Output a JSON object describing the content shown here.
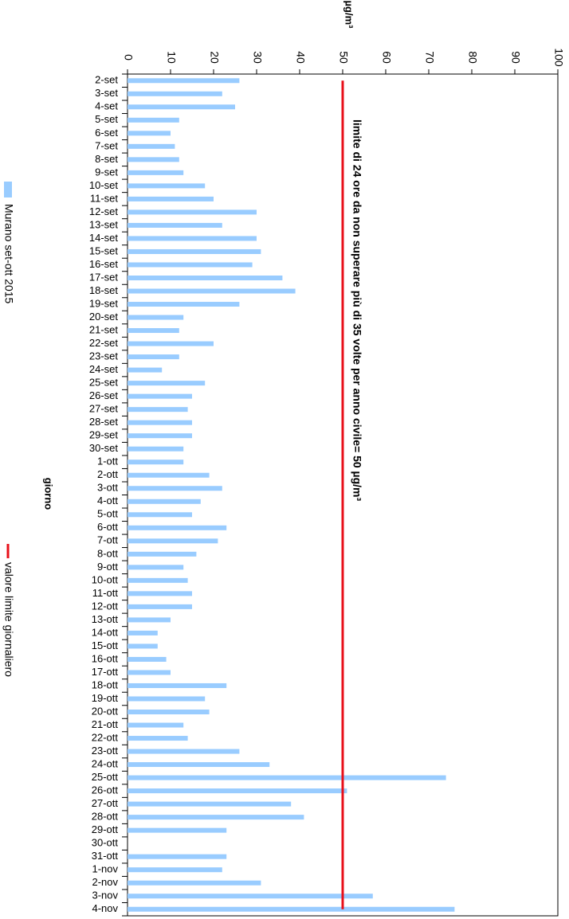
{
  "chart_data": {
    "type": "bar",
    "orientation": "horizontal",
    "ylabel": "µg/m³",
    "xlabel": "giorno",
    "categories": [
      "2-set",
      "3-set",
      "4-set",
      "5-set",
      "6-set",
      "7-set",
      "8-set",
      "9-set",
      "10-set",
      "11-set",
      "12-set",
      "13-set",
      "14-set",
      "15-set",
      "16-set",
      "17-set",
      "18-set",
      "19-set",
      "20-set",
      "21-set",
      "22-set",
      "23-set",
      "24-set",
      "25-set",
      "26-set",
      "27-set",
      "28-set",
      "29-set",
      "30-set",
      "1-ott",
      "2-ott",
      "3-ott",
      "4-ott",
      "5-ott",
      "6-ott",
      "7-ott",
      "8-ott",
      "9-ott",
      "10-ott",
      "11-ott",
      "12-ott",
      "13-ott",
      "14-ott",
      "15-ott",
      "16-ott",
      "17-ott",
      "18-ott",
      "19-ott",
      "20-ott",
      "21-ott",
      "22-ott",
      "23-ott",
      "24-ott",
      "25-ott",
      "26-ott",
      "27-ott",
      "28-ott",
      "29-ott",
      "30-ott",
      "31-ott",
      "1-nov",
      "2-nov",
      "3-nov",
      "4-nov"
    ],
    "series": [
      {
        "name": "Murano set-ott 2015",
        "color": "#99ccff",
        "values": [
          26,
          22,
          25,
          12,
          10,
          11,
          12,
          13,
          18,
          20,
          30,
          22,
          30,
          31,
          29,
          36,
          39,
          26,
          13,
          12,
          20,
          12,
          8,
          18,
          15,
          14,
          15,
          15,
          13,
          13,
          19,
          22,
          17,
          15,
          23,
          21,
          16,
          13,
          14,
          15,
          15,
          10,
          7,
          7,
          9,
          10,
          23,
          18,
          19,
          13,
          14,
          26,
          33,
          74,
          51,
          38,
          41,
          23,
          null,
          23,
          22,
          31,
          57,
          76
        ]
      }
    ],
    "reference_line": {
      "name": "valore limite giornaliero",
      "value": 50,
      "color": "#e8101a"
    },
    "annotation": "limite di 24 ore da non superare più di 35 volte per anno civile= 50 µg/m³",
    "ylim": [
      0,
      100
    ],
    "yticks": [
      0,
      10,
      20,
      30,
      40,
      50,
      60,
      70,
      80,
      90,
      100
    ]
  }
}
